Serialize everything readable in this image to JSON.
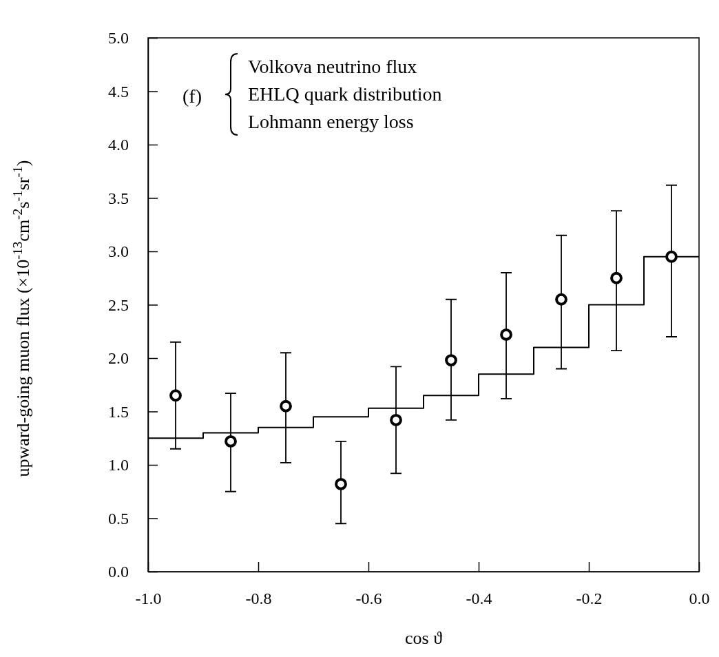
{
  "chart_data": {
    "type": "scatter",
    "xlabel": "cos ϑ",
    "ylabel": "upward-going muon flux (×10$^{-13}$cm$^{-2}$s$^{-1}$sr$^{-1}$)",
    "xlim": [
      -1.0,
      0.0
    ],
    "xticks": [
      {
        "value": -1.0,
        "label": "-1.0"
      },
      {
        "value": -0.8,
        "label": "-0.8"
      },
      {
        "value": -0.6,
        "label": "-0.6"
      },
      {
        "value": -0.4,
        "label": "-0.4"
      },
      {
        "value": -0.2,
        "label": "-0.2"
      },
      {
        "value": 0.0,
        "label": "0.0"
      }
    ],
    "ylim": [
      0,
      5.0
    ],
    "yticks": [
      {
        "value": 0,
        "label": "0.0"
      },
      {
        "value": 0.5,
        "label": "0.5"
      },
      {
        "value": 1.0,
        "label": "1.0"
      },
      {
        "value": 1.5,
        "label": "1.5"
      },
      {
        "value": 2.0,
        "label": "2.0"
      },
      {
        "value": 2.5,
        "label": "2.5"
      },
      {
        "value": 3.0,
        "label": "3.0"
      },
      {
        "value": 3.5,
        "label": "3.5"
      },
      {
        "value": 4.0,
        "label": "4.0"
      },
      {
        "value": 4.5,
        "label": "4.5"
      },
      {
        "value": 5.0,
        "label": "5.0"
      }
    ],
    "grid": false,
    "annotations": [
      "(f)",
      "Volkova neutrino flux",
      "EHLQ quark distribution",
      "Lohmann energy loss"
    ],
    "series": [
      {
        "type": "step",
        "color": "#000000",
        "x": [
          -1.0,
          -0.9,
          -0.8,
          -0.7,
          -0.6,
          -0.5,
          -0.4,
          -0.3,
          -0.2,
          -0.1,
          0.0
        ],
        "values": [
          1.25,
          1.3,
          1.35,
          1.45,
          1.53,
          1.65,
          1.85,
          2.1,
          2.5,
          2.95,
          2.95
        ]
      },
      {
        "marker": "circle",
        "color": "#000000",
        "x": [
          -0.95,
          -0.85,
          -0.75,
          -0.65,
          -0.55,
          -0.45,
          -0.35,
          -0.25,
          -0.15,
          -0.05
        ],
        "values": [
          1.65,
          1.22,
          1.55,
          0.82,
          1.42,
          1.98,
          2.22,
          2.55,
          2.75,
          2.95
        ],
        "errors": [
          [
            1.15,
            2.15
          ],
          [
            0.75,
            1.67
          ],
          [
            1.02,
            2.05
          ],
          [
            0.45,
            1.22
          ],
          [
            0.92,
            1.92
          ],
          [
            1.42,
            2.55
          ],
          [
            1.62,
            2.8
          ],
          [
            1.9,
            3.15
          ],
          [
            2.07,
            3.38
          ],
          [
            2.2,
            3.62
          ]
        ]
      }
    ]
  }
}
